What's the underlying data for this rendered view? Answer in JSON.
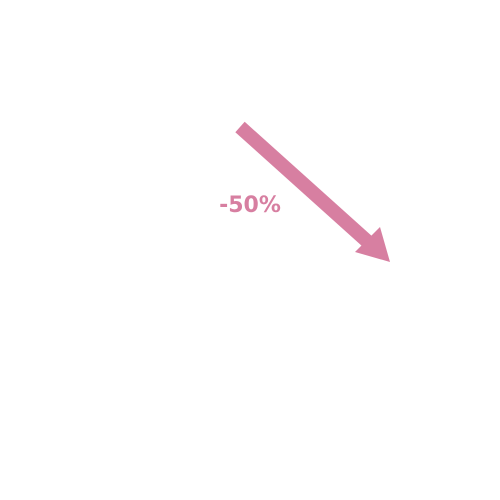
{
  "label": "-50%"
}
